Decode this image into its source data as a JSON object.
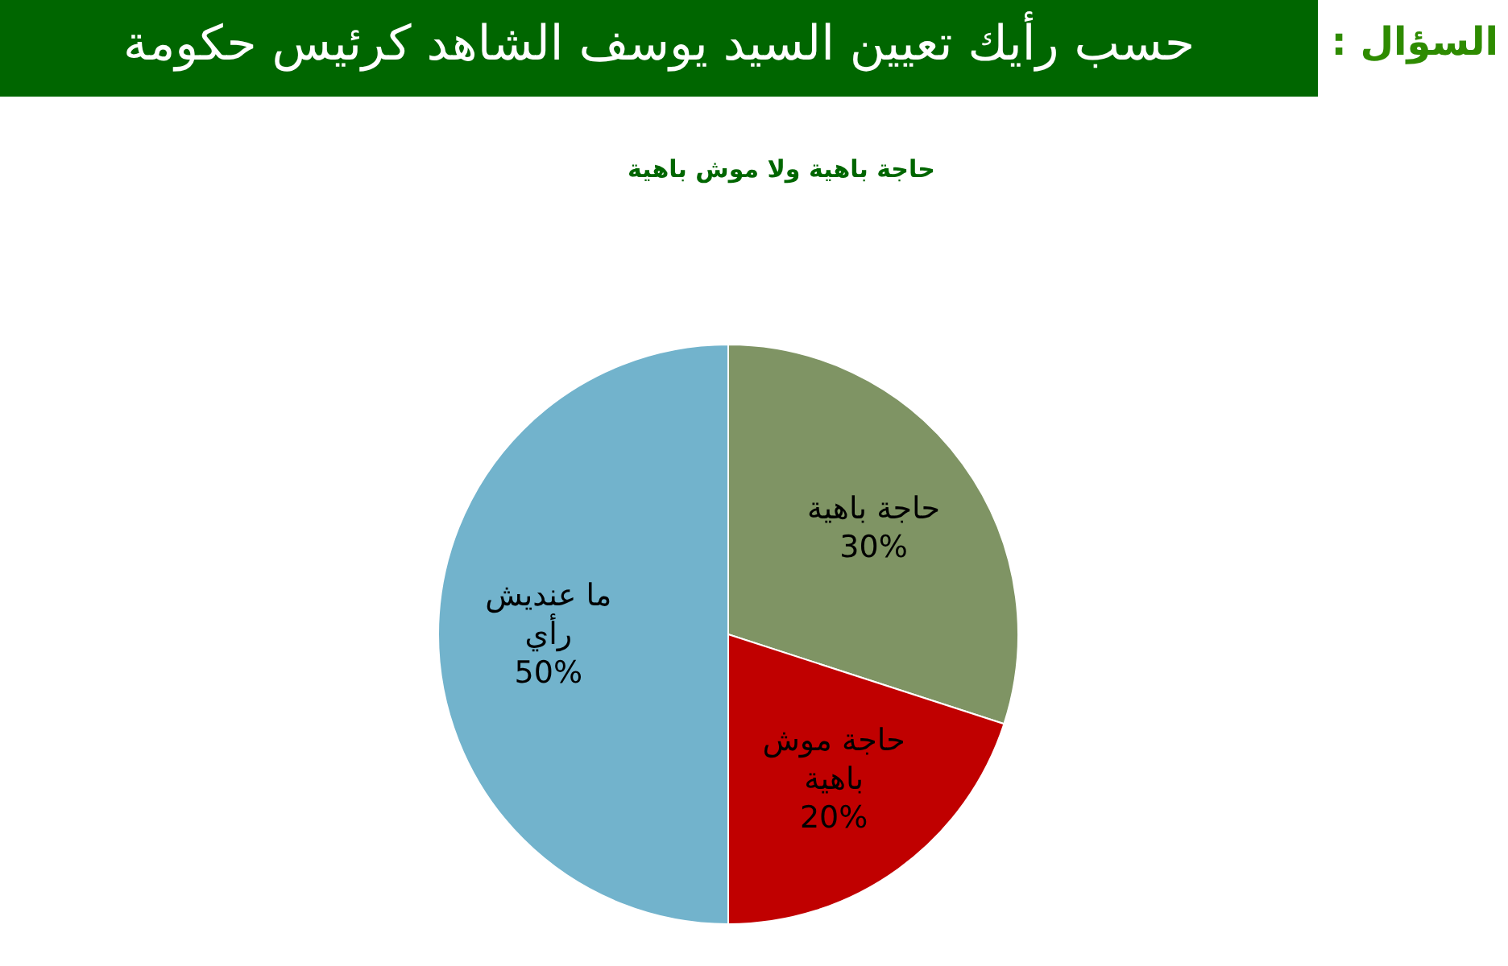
{
  "chart_data": {
    "type": "pie",
    "title": "حسب رأيك تعيين السيد يوسف الشاهد كرئيس حكومة",
    "subtitle": "حاجة باهية ولا موش باهية",
    "annotations": [
      "السؤال :"
    ],
    "categories": [
      "حاجة باهية",
      "حاجة موش باهية",
      "ما عنديش رأي"
    ],
    "values": [
      30,
      20,
      50
    ],
    "colors": [
      "#7f9464",
      "#c00000",
      "#72b3cc"
    ],
    "value_labels": [
      "30%",
      "20%",
      "50%"
    ]
  }
}
